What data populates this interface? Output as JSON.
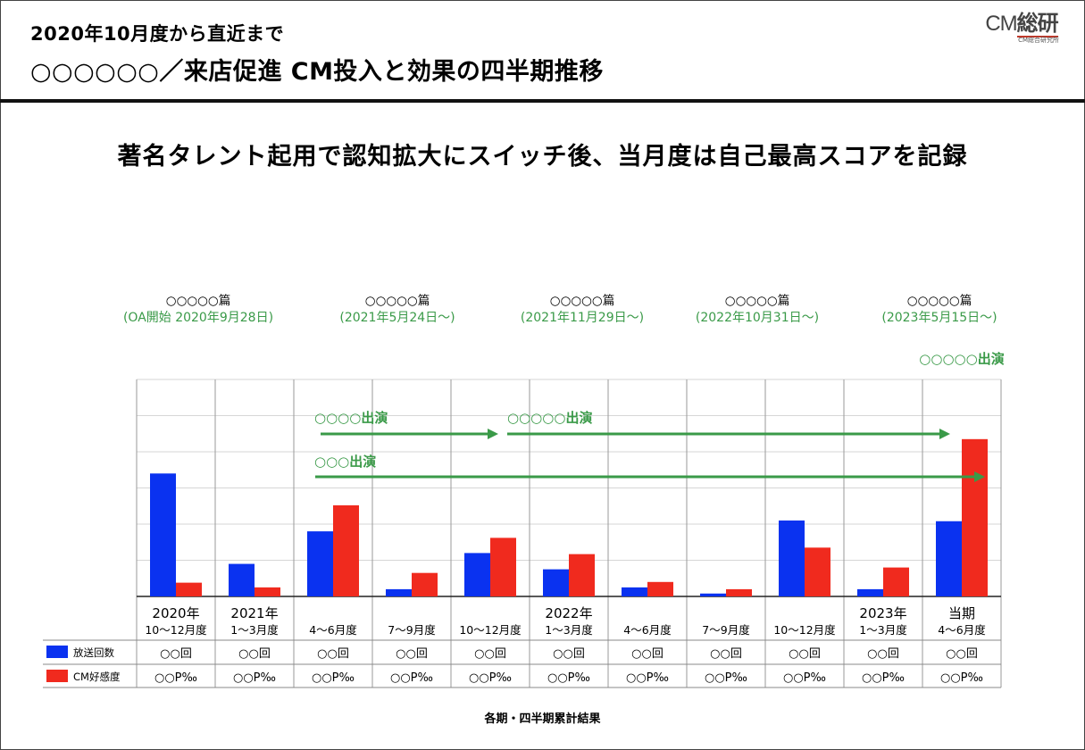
{
  "header": {
    "subtitle": "2020年10月度から直近まで",
    "title": "○○○○○○／来店促進 CM投入と効果の四半期推移",
    "logo_main_cm": "CM",
    "logo_main_kanji": "総研",
    "logo_sub": "CM総合研究所"
  },
  "headline": "著名タレント起用で認知拡大にスイッチ後、当月度は自己最高スコアを記録",
  "footnote": "各期・四半期累計結果",
  "colors": {
    "broadcast": "#0a32f0",
    "cm_favorability": "#f02a1e",
    "annotation": "#3a9a48"
  },
  "episodes": [
    {
      "name": "○○○○○篇",
      "date": "(OA開始 2020年9月28日)"
    },
    {
      "name": "○○○○○篇",
      "date": "(2021年5月24日〜)"
    },
    {
      "name": "○○○○○篇",
      "date": "(2021年11月29日〜)"
    },
    {
      "name": "○○○○○篇",
      "date": "(2022年10月31日〜)"
    },
    {
      "name": "○○○○○篇",
      "date": "(2023年5月15日〜)"
    }
  ],
  "appearances": [
    {
      "label": "○○○○○出演"
    },
    {
      "label": "○○○○出演"
    },
    {
      "label": "○○○○○出演"
    },
    {
      "label": "○○○出演"
    }
  ],
  "chart_data": {
    "type": "bar",
    "categories": [
      {
        "line1": "2020年",
        "line2": "10〜12月度"
      },
      {
        "line1": "2021年",
        "line2": "1〜3月度"
      },
      {
        "line1": "",
        "line2": "4〜6月度"
      },
      {
        "line1": "",
        "line2": "7〜9月度"
      },
      {
        "line1": "",
        "line2": "10〜12月度"
      },
      {
        "line1": "2022年",
        "line2": "1〜3月度"
      },
      {
        "line1": "",
        "line2": "4〜6月度"
      },
      {
        "line1": "",
        "line2": "7〜9月度"
      },
      {
        "line1": "",
        "line2": "10〜12月度"
      },
      {
        "line1": "2023年",
        "line2": "1〜3月度"
      },
      {
        "line1": "当期",
        "line2": "4〜6月度"
      }
    ],
    "series": [
      {
        "name": "放送回数",
        "color": "#0a32f0",
        "values": [
          3.4,
          0.9,
          1.8,
          0.2,
          1.2,
          0.75,
          0.25,
          0.08,
          2.1,
          0.2,
          2.08
        ],
        "table_values": [
          "○○回",
          "○○回",
          "○○回",
          "○○回",
          "○○回",
          "○○回",
          "○○回",
          "○○回",
          "○○回",
          "○○回",
          "○○回"
        ]
      },
      {
        "name": "CM好感度",
        "color": "#f02a1e",
        "values": [
          0.38,
          0.25,
          2.52,
          0.65,
          1.62,
          1.17,
          0.4,
          0.2,
          1.35,
          0.8,
          4.35
        ],
        "table_values": [
          "○○P‰",
          "○○P‰",
          "○○P‰",
          "○○P‰",
          "○○P‰",
          "○○P‰",
          "○○P‰",
          "○○P‰",
          "○○P‰",
          "○○P‰",
          "○○P‰"
        ]
      }
    ],
    "ylim": [
      0,
      6
    ],
    "grid": true
  }
}
